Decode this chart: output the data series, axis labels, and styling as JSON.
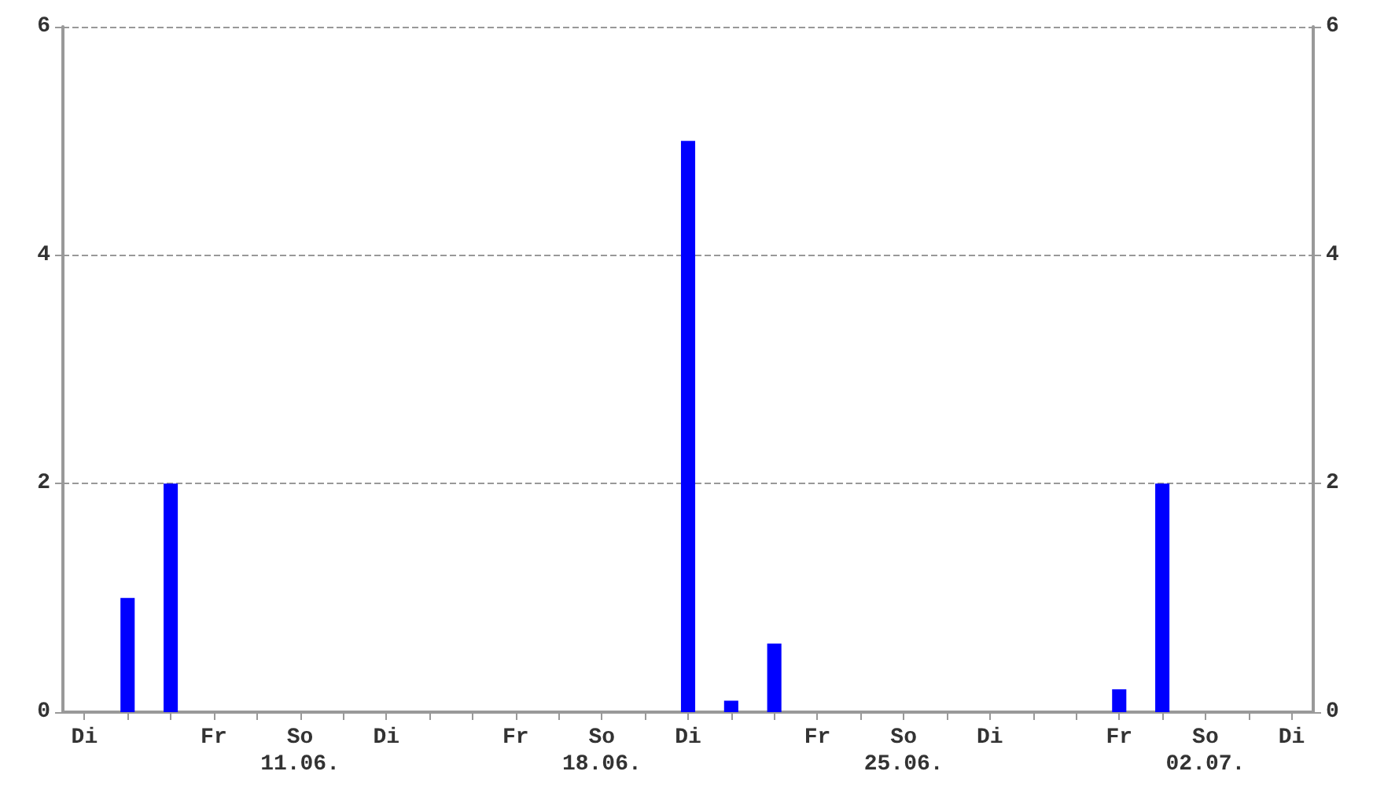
{
  "chart_data": {
    "type": "bar",
    "categories": [
      "Di",
      null,
      null,
      "Fr",
      null,
      "So\n11.06.",
      null,
      "Di",
      null,
      null,
      "Fr",
      null,
      "So\n18.06.",
      null,
      "Di",
      null,
      null,
      "Fr",
      null,
      "So\n25.06.",
      null,
      "Di",
      null,
      null,
      "Fr",
      null,
      "So\n02.07.",
      null,
      "Di"
    ],
    "values": [
      0,
      1,
      2,
      0,
      0,
      0,
      0,
      0,
      0,
      0,
      0,
      0,
      0,
      0,
      5,
      0.1,
      0.6,
      0,
      0,
      0,
      0,
      0,
      0,
      0,
      0.2,
      2,
      0,
      0,
      0
    ],
    "color": "#0000ff",
    "ylim": [
      0,
      6
    ],
    "yticks": [
      0,
      2,
      4,
      6
    ],
    "y2lim": [
      0,
      6
    ],
    "y2ticks": [
      0,
      2,
      4,
      6
    ],
    "grid": "y",
    "line_style": "dashed"
  }
}
